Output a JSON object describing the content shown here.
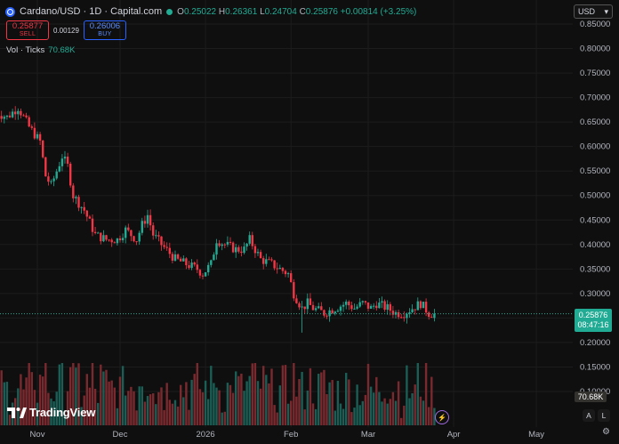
{
  "header": {
    "title": "Cardano/USD · 1D · Capital.com",
    "ohlc": [
      {
        "label": "O",
        "value": "0.25022"
      },
      {
        "label": "H",
        "value": "0.26361"
      },
      {
        "label": "L",
        "value": "0.24704"
      },
      {
        "label": "C",
        "value": "0.25876"
      }
    ],
    "change": "+0.00814 (+3.25%)"
  },
  "trade": {
    "sell_price": "0.25877",
    "sell_label": "SELL",
    "spread": "0.00129",
    "buy_price": "0.26006",
    "buy_label": "BUY"
  },
  "volume_legend": {
    "label": "Vol · Ticks",
    "value": "70.68K"
  },
  "currency": "USD",
  "logo_text": "TradingView",
  "price_tag": {
    "price": "0.25876",
    "countdown": "08:47:16"
  },
  "volume_tag": "70.68K",
  "corner_buttons": {
    "auto": "A",
    "log": "L"
  },
  "colors": {
    "up": "#22ab94",
    "down": "#f23645",
    "up_vol": "#1a5e55",
    "down_vol": "#7a2a2f",
    "background": "#0f0f0f",
    "text": "#d1d4dc"
  },
  "chart_data": {
    "type": "candlestick",
    "y_ticks": [
      "0.85000",
      "0.80000",
      "0.75000",
      "0.70000",
      "0.65000",
      "0.60000",
      "0.55000",
      "0.50000",
      "0.45000",
      "0.40000",
      "0.35000",
      "0.30000",
      "0.25000",
      "0.20000",
      "0.15000",
      "0.10000"
    ],
    "x_ticks": [
      "Nov",
      "Dec",
      "2026",
      "Feb",
      "Mar",
      "Apr",
      "May"
    ],
    "ylim": [
      0.1,
      0.85
    ],
    "price_path": [
      {
        "date": "2025-10-17",
        "price": 0.67
      },
      {
        "date": "2025-10-21",
        "price": 0.66
      },
      {
        "date": "2025-10-25",
        "price": 0.68
      },
      {
        "date": "2025-10-29",
        "price": 0.64
      },
      {
        "date": "2025-11-02",
        "price": 0.61
      },
      {
        "date": "2025-11-04",
        "price": 0.54
      },
      {
        "date": "2025-11-06",
        "price": 0.52
      },
      {
        "date": "2025-11-10",
        "price": 0.58
      },
      {
        "date": "2025-11-12",
        "price": 0.56
      },
      {
        "date": "2025-11-14",
        "price": 0.5
      },
      {
        "date": "2025-11-18",
        "price": 0.47
      },
      {
        "date": "2025-11-22",
        "price": 0.42
      },
      {
        "date": "2025-11-26",
        "price": 0.41
      },
      {
        "date": "2025-11-30",
        "price": 0.41
      },
      {
        "date": "2025-12-03",
        "price": 0.43
      },
      {
        "date": "2025-12-07",
        "price": 0.41
      },
      {
        "date": "2025-12-09",
        "price": 0.44
      },
      {
        "date": "2025-12-11",
        "price": 0.46
      },
      {
        "date": "2025-12-13",
        "price": 0.42
      },
      {
        "date": "2025-12-16",
        "price": 0.4
      },
      {
        "date": "2025-12-21",
        "price": 0.37
      },
      {
        "date": "2025-12-25",
        "price": 0.36
      },
      {
        "date": "2025-12-29",
        "price": 0.35
      },
      {
        "date": "2025-12-31",
        "price": 0.34
      },
      {
        "date": "2026-01-03",
        "price": 0.36
      },
      {
        "date": "2026-01-05",
        "price": 0.41
      },
      {
        "date": "2026-01-08",
        "price": 0.4
      },
      {
        "date": "2026-01-12",
        "price": 0.39
      },
      {
        "date": "2026-01-15",
        "price": 0.39
      },
      {
        "date": "2026-01-17",
        "price": 0.41
      },
      {
        "date": "2026-01-21",
        "price": 0.37
      },
      {
        "date": "2026-01-25",
        "price": 0.36
      },
      {
        "date": "2026-01-28",
        "price": 0.35
      },
      {
        "date": "2026-01-31",
        "price": 0.34
      },
      {
        "date": "2026-02-02",
        "price": 0.3
      },
      {
        "date": "2026-02-05",
        "price": 0.27
      },
      {
        "date": "2026-02-07",
        "price": 0.28
      },
      {
        "date": "2026-02-09",
        "price": 0.27
      },
      {
        "date": "2026-02-13",
        "price": 0.26
      },
      {
        "date": "2026-02-17",
        "price": 0.27
      },
      {
        "date": "2026-02-21",
        "price": 0.28
      },
      {
        "date": "2026-02-24",
        "price": 0.27
      },
      {
        "date": "2026-02-27",
        "price": 0.28
      },
      {
        "date": "2026-03-02",
        "price": 0.27
      },
      {
        "date": "2026-03-04",
        "price": 0.28
      },
      {
        "date": "2026-03-08",
        "price": 0.27
      },
      {
        "date": "2026-03-11",
        "price": 0.26
      },
      {
        "date": "2026-03-14",
        "price": 0.26
      },
      {
        "date": "2026-03-17",
        "price": 0.27
      },
      {
        "date": "2026-03-20",
        "price": 0.28
      },
      {
        "date": "2026-03-23",
        "price": 0.26
      },
      {
        "date": "2026-03-25",
        "price": 0.2588
      }
    ],
    "notable": {
      "low_wick_date": "2026-02-05",
      "low_wick_price": 0.22,
      "current_close": 0.25876
    }
  }
}
